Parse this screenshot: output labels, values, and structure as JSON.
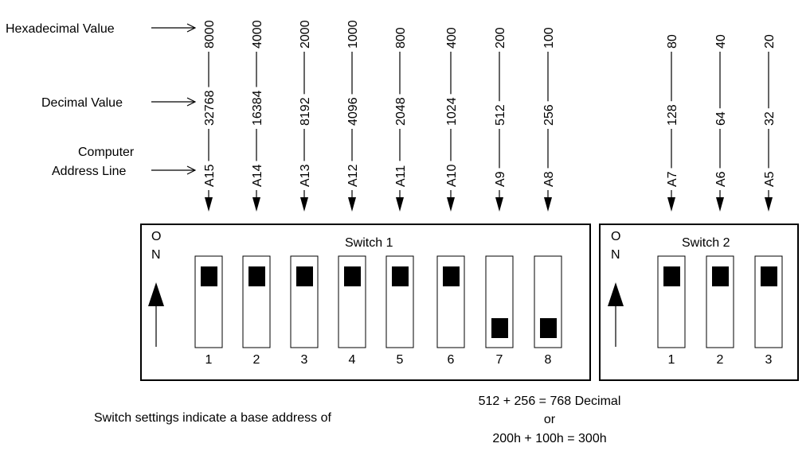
{
  "labels": {
    "hex_label": "Hexadecimal Value",
    "dec_label": "Decimal Value",
    "addr_label_line1": "Computer",
    "addr_label_line2": "Address Line"
  },
  "columns": [
    {
      "hex": "8000",
      "dec": "32768",
      "addr": "A15"
    },
    {
      "hex": "4000",
      "dec": "16384",
      "addr": "A14"
    },
    {
      "hex": "2000",
      "dec": "8192",
      "addr": "A13"
    },
    {
      "hex": "1000",
      "dec": "4096",
      "addr": "A12"
    },
    {
      "hex": "800",
      "dec": "2048",
      "addr": "A11"
    },
    {
      "hex": "400",
      "dec": "1024",
      "addr": "A10"
    },
    {
      "hex": "200",
      "dec": "512",
      "addr": "A9"
    },
    {
      "hex": "100",
      "dec": "256",
      "addr": "A8"
    },
    {
      "hex": "80",
      "dec": "128",
      "addr": "A7"
    },
    {
      "hex": "40",
      "dec": "64",
      "addr": "A6"
    },
    {
      "hex": "20",
      "dec": "32",
      "addr": "A5"
    }
  ],
  "switch1": {
    "title": "Switch 1",
    "on_label": [
      "O",
      "N"
    ],
    "positions": [
      {
        "number": "1",
        "state": "on"
      },
      {
        "number": "2",
        "state": "on"
      },
      {
        "number": "3",
        "state": "on"
      },
      {
        "number": "4",
        "state": "on"
      },
      {
        "number": "5",
        "state": "on"
      },
      {
        "number": "6",
        "state": "on"
      },
      {
        "number": "7",
        "state": "off"
      },
      {
        "number": "8",
        "state": "off"
      }
    ]
  },
  "switch2": {
    "title": "Switch 2",
    "on_label": [
      "O",
      "N"
    ],
    "positions": [
      {
        "number": "1",
        "state": "on"
      },
      {
        "number": "2",
        "state": "on"
      },
      {
        "number": "3",
        "state": "on"
      }
    ]
  },
  "footer": {
    "caption": "Switch settings indicate a base address of",
    "line1": "512 + 256 = 768 Decimal",
    "line2": "or",
    "line3": "200h + 100h = 300h"
  }
}
